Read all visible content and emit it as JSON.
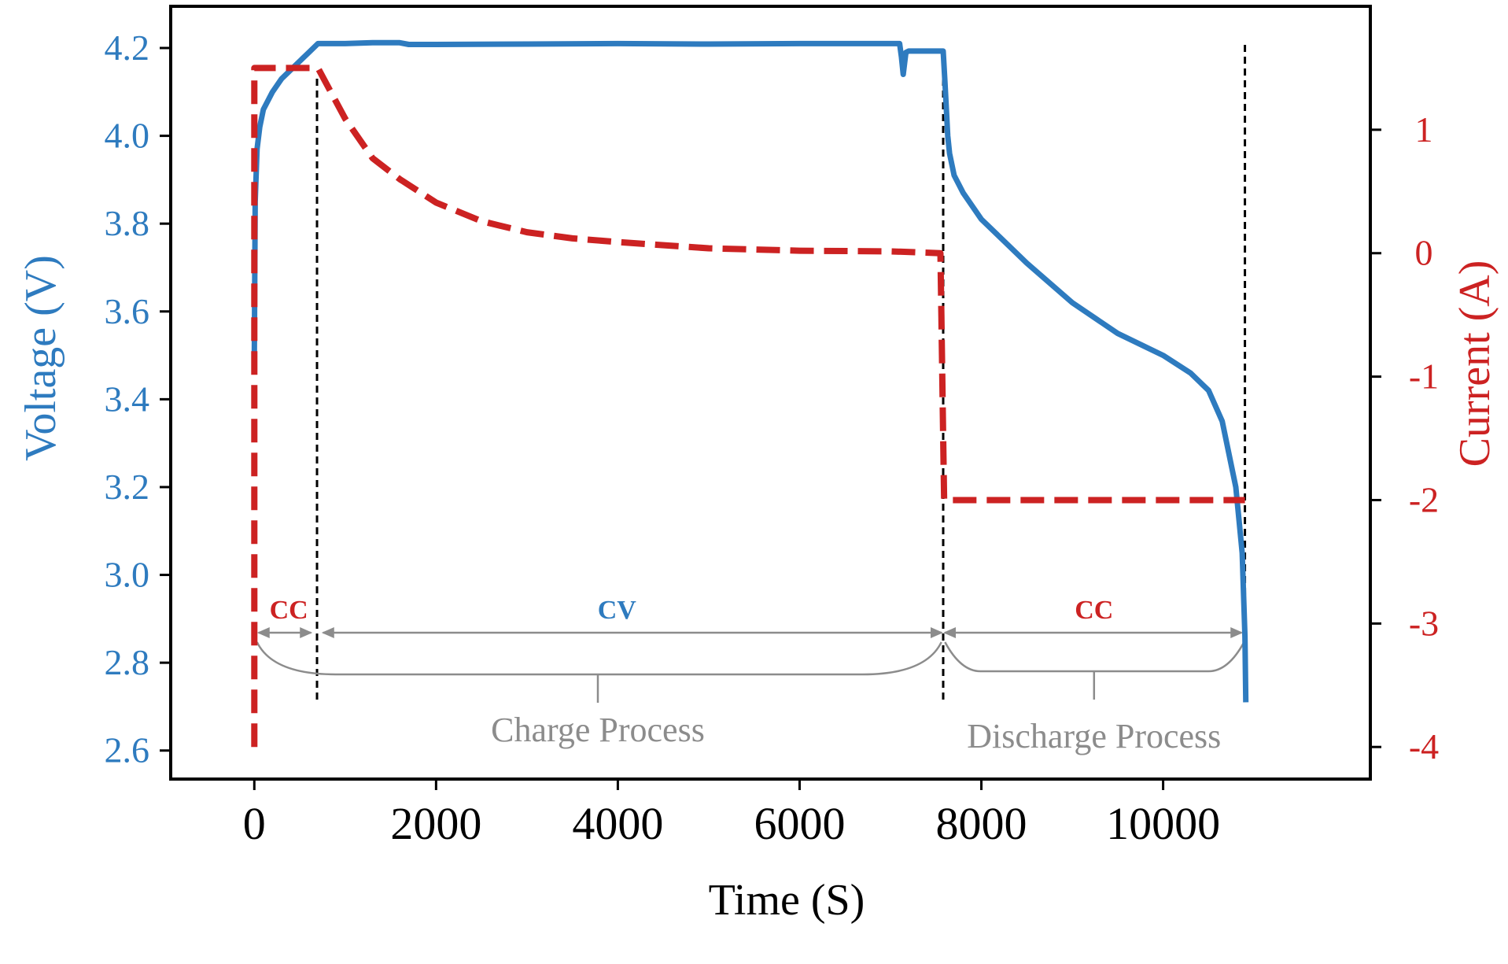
{
  "colors": {
    "voltage": "#2e7bbf",
    "current": "#cc2222",
    "annotation": "#8c8c8c",
    "axis": "#000000"
  },
  "chart_data": {
    "type": "line",
    "title": "",
    "xlabel": "Time (S)",
    "ylabel_left": "Voltage (V)",
    "ylabel_right": "Current (A)",
    "xlim": [
      -920,
      12280
    ],
    "ylim_left": [
      2.535,
      4.295
    ],
    "ylim_right": [
      -4.26,
      2.0
    ],
    "x_ticks": [
      "0",
      "2000",
      "4000",
      "6000",
      "8000",
      "10000"
    ],
    "y_left_ticks": [
      "2.6",
      "2.8",
      "3.0",
      "3.2",
      "3.4",
      "3.6",
      "3.8",
      "4.0",
      "4.2"
    ],
    "y_right_ticks": [
      "-4",
      "-3",
      "-2",
      "-1",
      "0",
      "1"
    ],
    "grid": false,
    "series": [
      {
        "name": "Voltage",
        "axis": "left",
        "style": "solid",
        "x": [
          0,
          10,
          30,
          60,
          100,
          200,
          300,
          450,
          600,
          700,
          1000,
          1300,
          1600,
          1700,
          2000,
          3000,
          4000,
          5000,
          6000,
          7000,
          7100,
          7120,
          7140,
          7170,
          7200,
          7500,
          7580,
          7600,
          7630,
          7650,
          7700,
          7800,
          8000,
          8200,
          8500,
          9000,
          9500,
          10000,
          10300,
          10500,
          10650,
          10800,
          10870,
          10900,
          10910
        ],
        "y": [
          3.5,
          3.85,
          3.97,
          4.02,
          4.06,
          4.1,
          4.13,
          4.16,
          4.19,
          4.21,
          4.21,
          4.212,
          4.212,
          4.208,
          4.208,
          4.209,
          4.21,
          4.209,
          4.21,
          4.21,
          4.21,
          4.18,
          4.14,
          4.19,
          4.193,
          4.193,
          4.193,
          4.12,
          4.0,
          3.96,
          3.91,
          3.87,
          3.81,
          3.77,
          3.71,
          3.62,
          3.55,
          3.5,
          3.46,
          3.42,
          3.35,
          3.2,
          3.05,
          2.86,
          2.71
        ]
      },
      {
        "name": "Current",
        "axis": "right",
        "style": "dashed",
        "x": [
          0,
          0,
          0,
          600,
          700,
          1000,
          1300,
          1600,
          2000,
          2500,
          3000,
          3500,
          4000,
          5000,
          6000,
          7000,
          7550,
          7560,
          7580,
          7590,
          7620,
          8000,
          9000,
          10000,
          10900
        ],
        "y": [
          -4.0,
          1.5,
          1.5,
          1.5,
          1.5,
          1.09,
          0.77,
          0.6,
          0.41,
          0.26,
          0.17,
          0.12,
          0.09,
          0.04,
          0.02,
          0.015,
          0.0,
          -0.5,
          -1.5,
          -2.0,
          -2.0,
          -2.0,
          -2.0,
          -2.0,
          -2.0
        ]
      }
    ],
    "markers_x": [
      690,
      7580,
      10900
    ],
    "annotations": {
      "phase_labels": [
        {
          "text": "CC",
          "x": 380,
          "color": "current"
        },
        {
          "text": "CV",
          "x": 3990,
          "color": "voltage"
        },
        {
          "text": "CC",
          "x": 9240,
          "color": "current"
        }
      ],
      "spans": [
        {
          "from": 30,
          "to": 640
        },
        {
          "from": 740,
          "to": 7580
        },
        {
          "from": 7580,
          "to": 10880
        }
      ],
      "braces": [
        {
          "label": "Charge Process",
          "from": 30,
          "to": 7560,
          "tip": 3780
        },
        {
          "label": "Discharge Process",
          "from": 7600,
          "to": 10890,
          "tip": 9240
        }
      ]
    }
  }
}
